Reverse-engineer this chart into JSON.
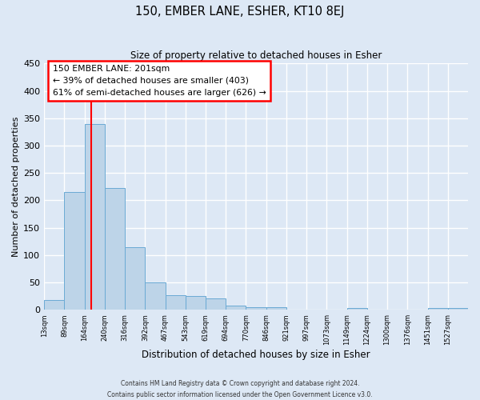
{
  "title": "150, EMBER LANE, ESHER, KT10 8EJ",
  "subtitle": "Size of property relative to detached houses in Esher",
  "xlabel": "Distribution of detached houses by size in Esher",
  "ylabel": "Number of detached properties",
  "bin_labels": [
    "13sqm",
    "89sqm",
    "164sqm",
    "240sqm",
    "316sqm",
    "392sqm",
    "467sqm",
    "543sqm",
    "619sqm",
    "694sqm",
    "770sqm",
    "846sqm",
    "921sqm",
    "997sqm",
    "1073sqm",
    "1149sqm",
    "1224sqm",
    "1300sqm",
    "1376sqm",
    "1451sqm",
    "1527sqm"
  ],
  "bar_heights": [
    18,
    215,
    340,
    222,
    115,
    50,
    27,
    26,
    21,
    8,
    5,
    5,
    0,
    0,
    0,
    4,
    0,
    0,
    0,
    3,
    3
  ],
  "bar_color": "#bdd4e8",
  "bar_edge_color": "#6aaad4",
  "ylim": [
    0,
    450
  ],
  "yticks": [
    0,
    50,
    100,
    150,
    200,
    250,
    300,
    350,
    400,
    450
  ],
  "red_line_x": 2.35,
  "annotation_title": "150 EMBER LANE: 201sqm",
  "annotation_line1": "← 39% of detached houses are smaller (403)",
  "annotation_line2": "61% of semi-detached houses are larger (626) →",
  "background_color": "#dde8f5",
  "plot_bg_color": "#dde8f5",
  "grid_color": "#ffffff",
  "footer_line1": "Contains HM Land Registry data © Crown copyright and database right 2024.",
  "footer_line2": "Contains public sector information licensed under the Open Government Licence v3.0."
}
